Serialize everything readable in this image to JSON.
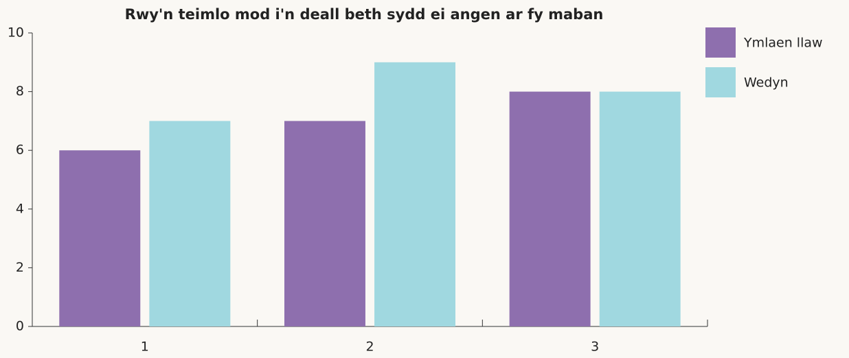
{
  "chart_data": {
    "type": "bar",
    "title": "Rwy'n teimlo mod i'n deall beth sydd ei angen ar fy maban",
    "categories": [
      "1",
      "2",
      "3"
    ],
    "series": [
      {
        "name": "Ymlaen llaw",
        "color": "#8e6fae",
        "values": [
          6,
          7,
          8
        ]
      },
      {
        "name": "Wedyn",
        "color": "#a0d8e0",
        "values": [
          7,
          9,
          8
        ]
      }
    ],
    "ylim": [
      0,
      10
    ],
    "yticks": [
      0,
      2,
      4,
      6,
      8,
      10
    ],
    "grid": false,
    "legend": "right"
  }
}
